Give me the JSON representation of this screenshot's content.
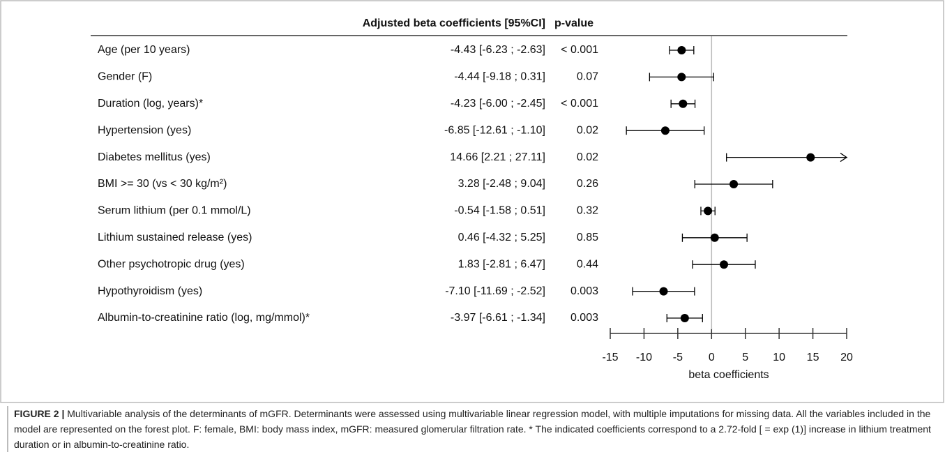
{
  "chart_data": {
    "type": "forest",
    "header_coef": "Adjusted beta coefficients [95%CI]",
    "header_p": "p-value",
    "categories": [
      "Age (per 10 years)",
      "Gender (F)",
      "Duration (log, years)*",
      "Hypertension (yes)",
      "Diabetes mellitus (yes)",
      "BMI >= 30 (vs < 30 kg/m²)",
      "Serum lithium (per 0.1 mmol/L)",
      "Lithium sustained release (yes)",
      "Other psychotropic drug (yes)",
      "Hypothyroidism (yes)",
      "Albumin-to-creatinine ratio (log, mg/mmol)*"
    ],
    "values": [
      -4.43,
      -4.44,
      -4.23,
      -6.85,
      14.66,
      3.28,
      -0.54,
      0.46,
      1.83,
      -7.1,
      -3.97
    ],
    "lower": [
      -6.23,
      -9.18,
      -6.0,
      -12.61,
      2.21,
      -2.48,
      -1.58,
      -4.32,
      -2.81,
      -11.69,
      -6.61
    ],
    "upper": [
      -2.63,
      0.31,
      -2.45,
      -1.1,
      27.11,
      9.04,
      0.51,
      5.25,
      6.47,
      -2.52,
      -1.34
    ],
    "value_labels": [
      "-4.43 [-6.23 ; -2.63]",
      "-4.44 [-9.18 ; 0.31]",
      "-4.23 [-6.00 ; -2.45]",
      "-6.85 [-12.61 ; -1.10]",
      "14.66 [2.21 ; 27.11]",
      "3.28 [-2.48 ; 9.04]",
      "-0.54 [-1.58 ; 0.51]",
      "0.46 [-4.32 ; 5.25]",
      "1.83 [-2.81 ; 6.47]",
      "-7.10 [-11.69 ; -2.52]",
      "-3.97 [-6.61 ; -1.34]"
    ],
    "p_values": [
      "< 0.001",
      "0.07",
      "< 0.001",
      "0.02",
      "0.02",
      "0.26",
      "0.32",
      "0.85",
      "0.44",
      "0.003",
      "0.003"
    ],
    "xlim": [
      -15,
      20
    ],
    "xticks": [
      -15,
      -10,
      -5,
      0,
      5,
      10,
      15,
      20
    ],
    "xlabel": "beta coefficients",
    "color": "#000000",
    "reference_line": 0
  },
  "caption": {
    "label": "FIGURE 2 |",
    "text": " Multivariable analysis of the determinants of mGFR. Determinants were assessed using multivariable linear regression model, with multiple imputations for missing data. All the variables included in the model are represented on the forest plot. F: female, BMI: body mass index, mGFR: measured glomerular filtration rate. * The indicated coefficients correspond to a 2.72-fold [ = exp (1)] increase in lithium treatment duration or in albumin-to-creatinine ratio."
  }
}
